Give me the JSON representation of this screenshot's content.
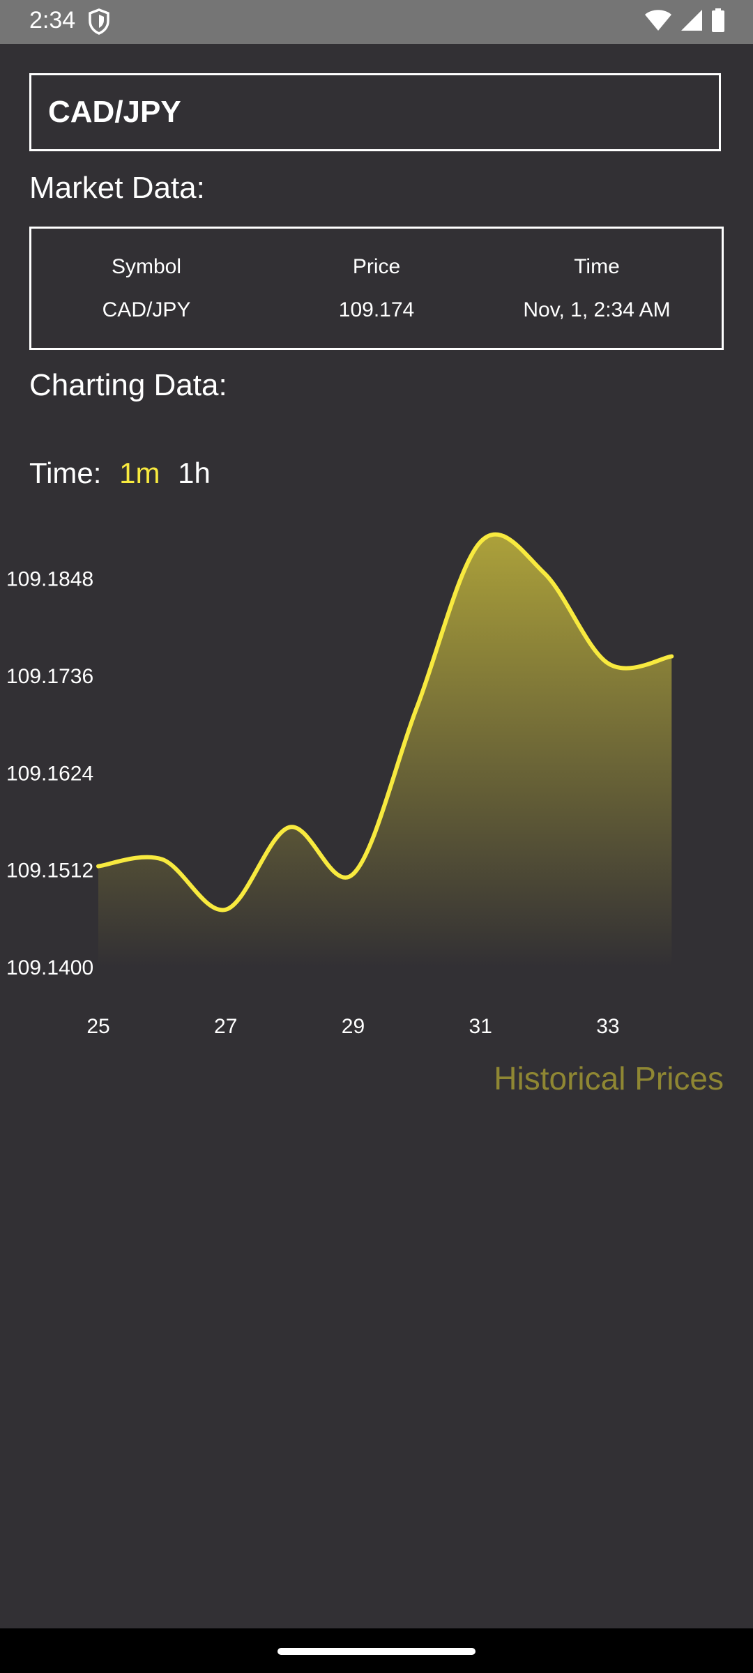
{
  "status_bar": {
    "time": "2:34"
  },
  "symbol_field": {
    "value": "CAD/JPY"
  },
  "market_data": {
    "title": "Market Data:",
    "columns": [
      {
        "header": "Symbol",
        "value": "CAD/JPY"
      },
      {
        "header": "Price",
        "value": "109.174"
      },
      {
        "header": "Time",
        "value": "Nov, 1, 2:34 AM"
      }
    ]
  },
  "charting": {
    "title": "Charting Data:",
    "time_label": "Time:",
    "time_options": [
      {
        "label": "1m",
        "active": true
      },
      {
        "label": "1h",
        "active": false
      }
    ],
    "footer_label": "Historical Prices"
  },
  "colors": {
    "accent": "#f8ea3f",
    "background": "#323034",
    "footer_label": "#8f8733"
  },
  "chart_data": {
    "type": "area",
    "x": [
      25,
      26,
      27,
      28,
      29,
      30,
      31,
      32,
      33,
      34
    ],
    "y": [
      109.1516,
      109.1524,
      109.1466,
      109.1561,
      109.1507,
      109.1699,
      109.189,
      109.1854,
      109.175,
      109.1758
    ],
    "x_ticks": [
      "25",
      "27",
      "29",
      "31",
      "33"
    ],
    "y_ticks": [
      "109.1400",
      "109.1512",
      "109.1624",
      "109.1736",
      "109.1848"
    ],
    "ylim": [
      109.14,
      109.192
    ],
    "xlim": [
      25,
      34.5
    ]
  }
}
